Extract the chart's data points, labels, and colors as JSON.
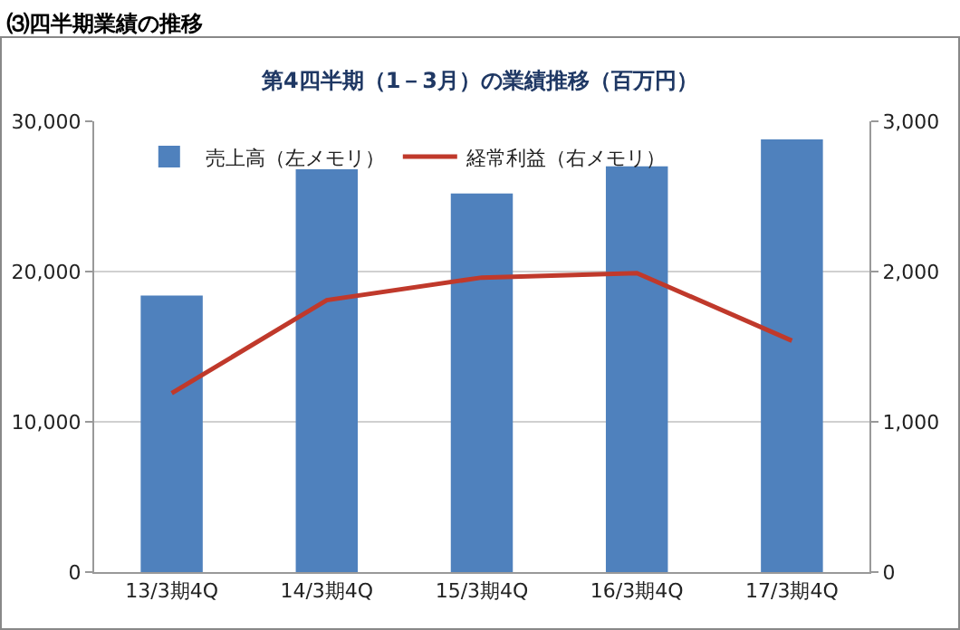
{
  "chart_data": {
    "type": "bar",
    "title": "第4四半期（1－3月）の業績推移（百万円）",
    "annotations": [
      "⑶四半期業績の推移"
    ],
    "categories": [
      "13/3期4Q",
      "14/3期4Q",
      "15/3期4Q",
      "16/3期4Q",
      "17/3期4Q"
    ],
    "series": [
      {
        "name": "売上高（左メモリ）",
        "color": "#4f81bd",
        "values": [
          18400,
          26800,
          25200,
          27000,
          28800
        ]
      },
      {
        "name": "経常利益（右メモリ）",
        "type": "line",
        "axis": "y2",
        "color": "#c0392b",
        "values": [
          1190,
          1810,
          1960,
          1990,
          1540
        ]
      }
    ],
    "ylim": [
      0,
      30000
    ],
    "yticks": [
      {
        "value": 0,
        "label": "0"
      },
      {
        "value": 10000,
        "label": "10,000"
      },
      {
        "value": 20000,
        "label": "20,000"
      },
      {
        "value": 30000,
        "label": "30,000"
      }
    ],
    "y2lim": [
      0,
      3000
    ],
    "y2ticks": [
      {
        "value": 0,
        "label": "0"
      },
      {
        "value": 1000,
        "label": "1,000"
      },
      {
        "value": 2000,
        "label": "2,000"
      },
      {
        "value": 3000,
        "label": "3,000"
      }
    ],
    "grid": "y",
    "legend": "top left",
    "marker": "none",
    "line_style": "solid"
  }
}
